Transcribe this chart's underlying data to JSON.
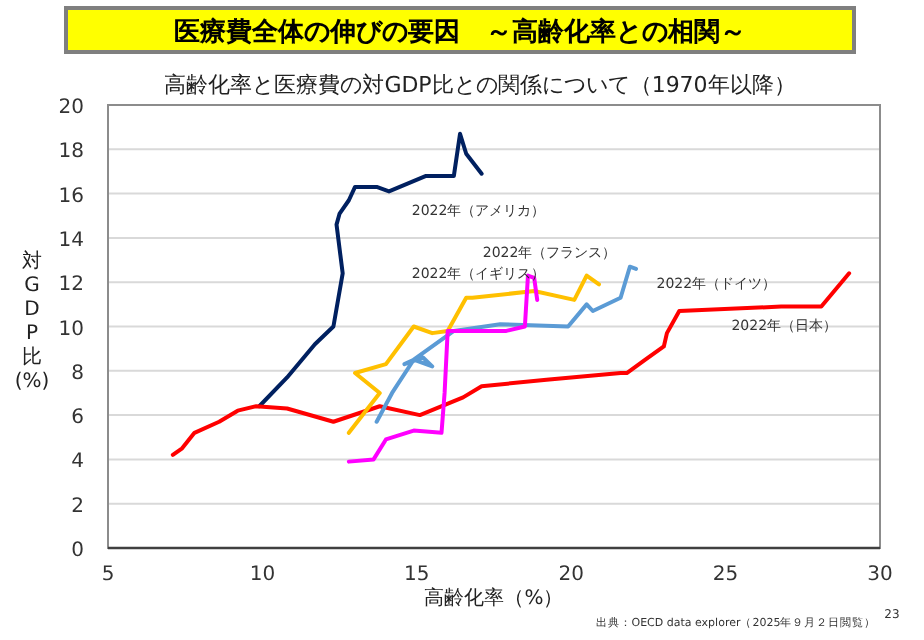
{
  "chart_data": {
    "type": "line",
    "title": "医療費全体の伸びの要因　～高齢化率との相関～",
    "subtitle": "高齢化率と医療費の対GDP比との関係について（1970年以降）",
    "xlabel": "高齢化率（%）",
    "ylabel": "対GDP比(%)",
    "xlim": [
      5,
      30
    ],
    "xticks": [
      5,
      10,
      15,
      20,
      25,
      30
    ],
    "ylim": [
      0,
      20
    ],
    "yticks": [
      0,
      2,
      4,
      6,
      8,
      10,
      12,
      14,
      16,
      18,
      20
    ],
    "grid": "y",
    "marker": "none",
    "line_style": "solid",
    "series": [
      {
        "color": "#002060",
        "x": [
          9.9,
          10.8,
          11.7,
          12.3,
          12.6,
          12.4,
          12.5,
          12.8,
          13.0,
          13.7,
          14.1,
          15.3,
          16.2,
          16.4,
          16.6,
          17.1
        ],
        "values": [
          6.4,
          7.7,
          9.2,
          10.0,
          12.4,
          14.6,
          15.1,
          15.7,
          16.3,
          16.3,
          16.1,
          16.8,
          16.8,
          18.7,
          17.8,
          16.9
        ]
      },
      {
        "color": "#ff0000",
        "x": [
          7.1,
          7.4,
          7.8,
          8.6,
          9.2,
          9.8,
          10.8,
          12.3,
          13.8,
          15.1,
          16.5,
          17.1,
          19.2,
          21.6,
          21.8,
          22.4,
          23.0,
          23.1,
          23.5,
          26.8,
          28.1,
          29.0
        ],
        "values": [
          4.2,
          4.5,
          5.2,
          5.7,
          6.2,
          6.4,
          6.3,
          5.7,
          6.4,
          6.0,
          6.8,
          7.3,
          7.6,
          7.9,
          7.9,
          8.5,
          9.1,
          9.7,
          10.7,
          10.9,
          10.9,
          12.4
        ]
      },
      {
        "color": "#5b9bd5",
        "x": [
          13.7,
          14.2,
          14.9,
          14.6,
          15.2,
          15.5,
          14.9,
          16.2,
          17.7,
          19.9,
          20.5,
          20.7,
          21.6,
          21.9,
          22.1
        ],
        "values": [
          5.7,
          7.0,
          8.5,
          8.3,
          8.6,
          8.2,
          8.5,
          9.8,
          10.1,
          10.0,
          11.0,
          10.7,
          11.3,
          12.7,
          12.6
        ]
      },
      {
        "color": "#ffc000",
        "x": [
          12.8,
          13.8,
          13.0,
          14.0,
          14.9,
          15.5,
          16.0,
          16.6,
          16.8,
          18.8,
          20.1,
          20.5,
          20.9
        ],
        "values": [
          5.2,
          7.0,
          7.9,
          8.3,
          10.0,
          9.7,
          9.8,
          11.3,
          11.3,
          11.6,
          11.2,
          12.3,
          11.9
        ]
      },
      {
        "color": "#ff00ff",
        "x": [
          12.8,
          13.6,
          14.0,
          14.9,
          15.8,
          15.9,
          16.0,
          17.9,
          18.5,
          18.6,
          18.8,
          18.9
        ],
        "values": [
          3.9,
          4.0,
          4.9,
          5.3,
          5.2,
          7.0,
          9.8,
          9.8,
          10.0,
          12.3,
          12.2,
          11.2
        ]
      }
    ],
    "annotations": [
      "2022年（アメリカ）",
      "2022年（イギリス）",
      "2022年（フランス）",
      "2022年（ドイツ）",
      "2022年（日本）",
      "出典：OECD data explorer（2025年９月２日閲覧）",
      "23"
    ]
  }
}
